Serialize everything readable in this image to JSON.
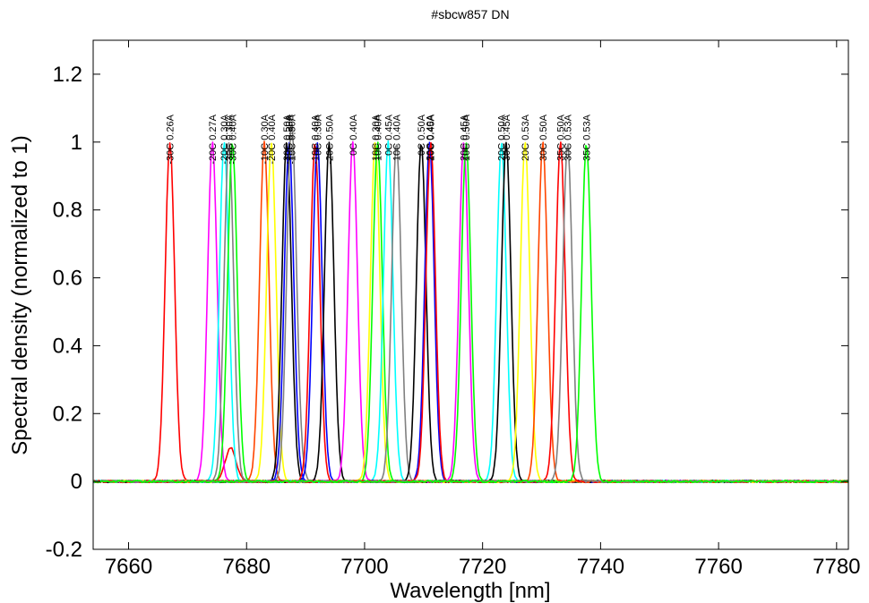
{
  "chart_data": {
    "type": "line",
    "title": "#sbcw857 DN",
    "xlabel": "Wavelength [nm]",
    "ylabel": "Spectral density (normalized to 1)",
    "xlim": [
      7654,
      7782
    ],
    "ylim": [
      -0.2,
      1.3
    ],
    "x_ticks": [
      7660,
      7680,
      7700,
      7720,
      7740,
      7760,
      7780
    ],
    "y_ticks": [
      -0.2,
      0,
      0.2,
      0.4,
      0.6,
      0.8,
      1,
      1.2
    ],
    "x_tick_labels": [
      "7660",
      "7680",
      "7700",
      "7720",
      "7740",
      "7760",
      "7780"
    ],
    "y_tick_labels": [
      "-0.2",
      "0",
      "0.2",
      "0.4",
      "0.6",
      "0.8",
      "1",
      "1.2"
    ],
    "grid": false,
    "legend": "none",
    "series": [
      {
        "label": "-30C 0.26A",
        "peak": 7667.0,
        "color": "#ff0000",
        "side": 7677.3,
        "side_amp": 0.1
      },
      {
        "label": "-20C 0.27A",
        "peak": 7674.2,
        "color": "#ff00ff"
      },
      {
        "label": "-20C 0.30A",
        "peak": 7676.2,
        "color": "#00ffff"
      },
      {
        "label": "-30C 0.30A",
        "peak": 7677.0,
        "color": "#808080"
      },
      {
        "label": "-30C 0.40A",
        "peak": 7677.6,
        "color": "#00ff00"
      },
      {
        "label": "-10C 0.30A",
        "peak": 7683.0,
        "color": "#ff4500"
      },
      {
        "label": "-20C 0.40A",
        "peak": 7684.2,
        "color": "#ffff00"
      },
      {
        "label": "-30C 0.50A",
        "peak": 7686.8,
        "color": "#000000"
      },
      {
        "label": "10C 0.30A",
        "peak": 7687.2,
        "color": "#0000ff"
      },
      {
        "label": "-10C 0.50A",
        "peak": 7687.6,
        "color": "#808080",
        "side": 7688.3,
        "side_amp": 0.08
      },
      {
        "label": "-10C 0.40A",
        "peak": 7691.6,
        "color": "#ff0000"
      },
      {
        "label": "0C 0.30A",
        "peak": 7692.0,
        "color": "#0000ff"
      },
      {
        "label": "-20C 0.50A",
        "peak": 7694.0,
        "color": "#000000"
      },
      {
        "label": "0C 0.40A",
        "peak": 7698.0,
        "color": "#ff00ff"
      },
      {
        "label": "10C 0.30A",
        "peak": 7701.8,
        "color": "#ffff00"
      },
      {
        "label": "10C 0.40A",
        "peak": 7702.2,
        "color": "#00ff00"
      },
      {
        "label": "0C 0.45A",
        "peak": 7704.0,
        "color": "#00ffff"
      },
      {
        "label": "10C 0.40A",
        "peak": 7705.4,
        "color": "#808080"
      },
      {
        "label": "0C 0.50A",
        "peak": 7709.6,
        "color": "#000000"
      },
      {
        "label": "20C 0.40A",
        "peak": 7711.0,
        "color": "#0000ff"
      },
      {
        "label": "10C 0.45A",
        "peak": 7711.2,
        "color": "#ff0000"
      },
      {
        "label": "20C 0.45A",
        "peak": 7716.8,
        "color": "#ff00ff"
      },
      {
        "label": "10C 0.50A",
        "peak": 7717.2,
        "color": "#00ff00"
      },
      {
        "label": "20C 0.50A",
        "peak": 7723.2,
        "color": "#00ffff"
      },
      {
        "label": "30C 0.45A",
        "peak": 7724.0,
        "color": "#000000"
      },
      {
        "label": "20C 0.53A",
        "peak": 7727.2,
        "color": "#ffff00"
      },
      {
        "label": "30C 0.50A",
        "peak": 7730.2,
        "color": "#ff4500"
      },
      {
        "label": "35C 0.50A",
        "peak": 7733.2,
        "color": "#ff0000"
      },
      {
        "label": "30C 0.53A",
        "peak": 7734.4,
        "color": "#808080"
      },
      {
        "label": "35C 0.53A",
        "peak": 7737.6,
        "color": "#00ff00"
      }
    ]
  }
}
